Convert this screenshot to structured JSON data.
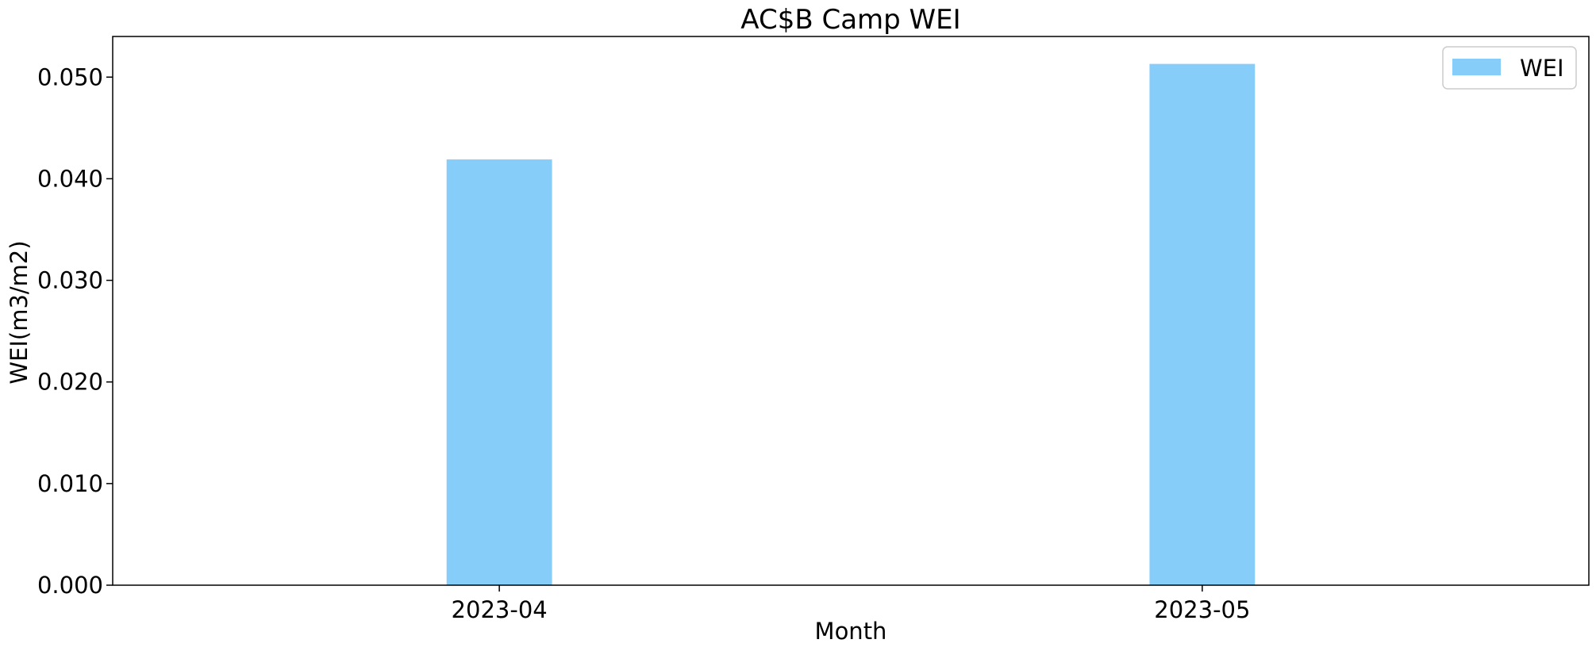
{
  "chart_data": {
    "type": "bar",
    "title": "AC$B Camp WEI",
    "xlabel": "Month",
    "ylabel": "WEI(m3/m2)",
    "categories": [
      "2023-04",
      "2023-05"
    ],
    "series": [
      {
        "name": "WEI",
        "values": [
          0.0419,
          0.0513
        ]
      }
    ],
    "ylim": [
      0,
      0.054
    ],
    "yticks": [
      "0.000",
      "0.010",
      "0.020",
      "0.030",
      "0.040",
      "0.050"
    ],
    "grid": false,
    "legend_position": "top-right",
    "colors": {
      "bar": "#87cdf9",
      "axis": "#000000",
      "background": "#ffffff"
    }
  }
}
